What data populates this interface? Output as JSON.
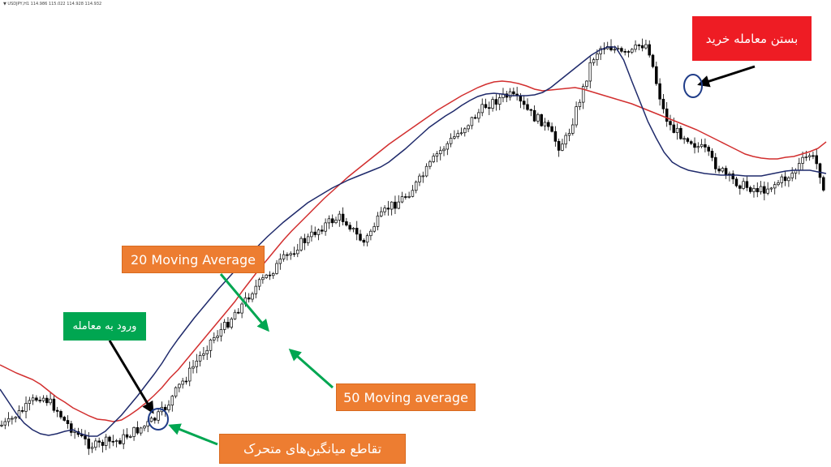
{
  "header": {
    "ticker_text": "▼ USDJPY,H1  114.986  115.022  114.928  114.932"
  },
  "annotations": {
    "ma20_label": "20 Moving Average",
    "ma50_label": "50 Moving average",
    "crossover_label": "تقاطع میانگین‌های متحرک",
    "entry_label": "ورود به معامله",
    "exit_label": "بستن معامله خرید"
  },
  "colors": {
    "ma20": "#1f2a6b",
    "ma50": "#d22f2f",
    "candle": "#000000",
    "callout_orange": "#ed7d31",
    "callout_green": "#00a651",
    "callout_red": "#ee1c24",
    "arrow_green": "#00a651",
    "arrow_black": "#000000",
    "circle": "#1f3c88"
  },
  "chart_data": {
    "type": "line",
    "symbol": "USDJPY",
    "timeframe": "H1",
    "grid": false,
    "xlabel": "",
    "ylabel": "",
    "x": [
      0,
      10,
      20,
      30,
      40,
      50,
      60,
      70,
      80,
      90,
      100,
      110,
      120,
      130,
      140,
      150,
      160,
      170,
      180,
      190,
      200,
      210,
      220,
      230,
      240,
      250,
      260,
      270,
      280,
      290,
      300,
      310,
      320,
      330,
      340,
      350,
      360,
      370,
      380,
      390,
      400,
      410,
      420,
      430,
      440,
      450,
      460,
      470,
      480,
      490,
      500,
      510,
      520,
      530,
      540,
      550,
      560,
      570,
      580,
      590,
      600,
      610,
      620,
      630,
      640,
      650,
      660,
      670,
      680,
      690,
      700,
      710,
      720,
      730,
      740,
      750,
      760,
      770,
      780,
      790,
      800,
      810,
      820,
      830,
      840,
      850,
      860,
      870,
      880,
      890,
      900,
      910,
      920,
      930,
      940,
      950,
      960,
      970,
      980,
      990,
      1000,
      1010,
      1020
    ],
    "series": [
      {
        "key": "close",
        "values": [
          525,
          522,
          512,
          505,
          495,
          488,
          495,
          505,
          520,
          530,
          540,
          548,
          550,
          545,
          545,
          542,
          535,
          530,
          525,
          518,
          508,
          495,
          478,
          465,
          450,
          435,
          420,
          410,
          400,
          385,
          375,
          360,
          350,
          340,
          330,
          320,
          312,
          300,
          295,
          285,
          278,
          272,
          268,
          275,
          290,
          300,
          280,
          268,
          255,
          250,
          242,
          232,
          220,
          205,
          190,
          180,
          170,
          160,
          150,
          140,
          130,
          125,
          120,
          118,
          125,
          135,
          145,
          150,
          165,
          180,
          170,
          140,
          110,
          75,
          60,
          55,
          62,
          68,
          65,
          55,
          55,
          100,
          140,
          160,
          165,
          170,
          180,
          185,
          200,
          210,
          220,
          225,
          230,
          232,
          235,
          230,
          225,
          220,
          212,
          200,
          190,
          205,
          240
        ]
      },
      {
        "key": "ma20",
        "values": [
          480,
          495,
          510,
          522,
          530,
          535,
          537,
          535,
          532,
          530,
          535,
          538,
          538,
          532,
          522,
          512,
          500,
          488,
          475,
          462,
          448,
          432,
          418,
          405,
          392,
          380,
          368,
          356,
          345,
          334,
          322,
          312,
          302,
          292,
          283,
          274,
          266,
          258,
          250,
          244,
          238,
          232,
          227,
          222,
          218,
          214,
          210,
          206,
          200,
          192,
          184,
          175,
          166,
          157,
          150,
          143,
          137,
          130,
          124,
          119,
          116,
          115,
          116,
          118,
          118,
          118,
          117,
          114,
          108,
          100,
          92,
          84,
          76,
          68,
          62,
          58,
          58,
          74,
          100,
          125,
          150,
          170,
          188,
          200,
          206,
          210,
          212,
          214,
          215,
          216,
          216,
          216,
          217,
          217,
          217,
          215,
          213,
          211,
          210,
          210,
          210,
          212,
          214
        ]
      },
      {
        "key": "ma50",
        "values": [
          450,
          455,
          460,
          464,
          468,
          474,
          482,
          490,
          496,
          503,
          508,
          513,
          517,
          518,
          520,
          518,
          512,
          505,
          497,
          488,
          478,
          466,
          456,
          444,
          432,
          420,
          408,
          396,
          384,
          372,
          358,
          345,
          332,
          320,
          308,
          296,
          285,
          275,
          265,
          255,
          245,
          236,
          227,
          218,
          210,
          202,
          194,
          186,
          178,
          171,
          164,
          157,
          150,
          143,
          136,
          130,
          124,
          118,
          113,
          108,
          104,
          101,
          100,
          101,
          103,
          106,
          110,
          112,
          111,
          110,
          109,
          108,
          110,
          113,
          116,
          119,
          122,
          125,
          128,
          132,
          136,
          140,
          144,
          148,
          152,
          156,
          160,
          165,
          170,
          175,
          180,
          185,
          190,
          193,
          195,
          196,
          196,
          194,
          193,
          190,
          187,
          183,
          175
        ]
      }
    ]
  }
}
